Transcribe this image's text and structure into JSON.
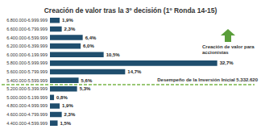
{
  "chart_data": {
    "type": "bar",
    "orientation": "horizontal",
    "title": "Creación de valor tras la 3º decisión (1º Ronda 14-15)",
    "categories": [
      "6.800.000-6.999.999",
      "6.600.000-6.799.999",
      "6.400.000-6.599.999",
      "6.200.000-6.399.999",
      "6.000.000-6.199.999",
      "5.800.000-5.999.999",
      "5.600.000-5.799.999",
      "5.400.000-5.599.999",
      "5.200.000-5.399.999",
      "5.000.000-5.199.999",
      "4.800.000-4.999.999",
      "4.600.000-4.799.999",
      "4.400.000-4.599.999"
    ],
    "values": [
      1.9,
      2.3,
      6.4,
      6.0,
      10.5,
      32.7,
      14.7,
      5.6,
      5.3,
      0.8,
      1.9,
      2.3,
      1.5
    ],
    "value_labels": [
      "1,9%",
      "2,3%",
      "6,4%",
      "6,0%",
      "10,5%",
      "32,7%",
      "14,7%",
      "5,6%",
      "5,3%",
      "0,8%",
      "1,9%",
      "2,3%",
      "1,5%"
    ],
    "color": "#1f4e6e",
    "xlim": [
      0,
      40
    ],
    "data_labels": true,
    "tick_labels": "y",
    "grid": false,
    "annotations": [
      {
        "text": "Desempeño de la Inversión Inicial 5.332.620",
        "category": "5.200.000-5.399.999",
        "color": "#7ab648"
      },
      {
        "text": "Creación de valor para accionistas",
        "color": "#5a9e3a"
      }
    ]
  }
}
